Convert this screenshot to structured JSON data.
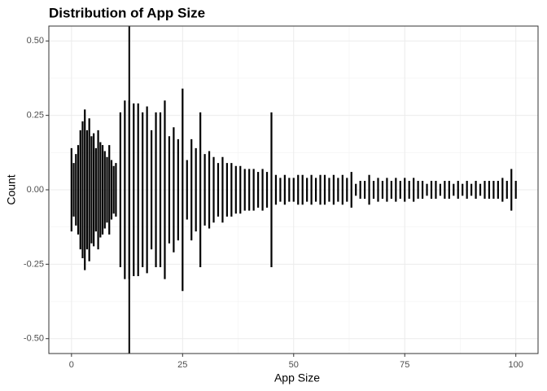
{
  "chart_data": {
    "type": "linerange",
    "title": "Distribution of App Size",
    "x_label": "App Size",
    "y_label": "Count",
    "x": [
      0,
      0.5,
      1,
      1.5,
      2,
      2.5,
      3,
      3.5,
      4,
      4.5,
      5,
      5.5,
      6,
      6.5,
      7,
      7.5,
      8,
      8.5,
      9,
      9.5,
      10,
      11,
      12,
      13,
      14,
      15,
      16,
      17,
      18,
      19,
      20,
      21,
      22,
      23,
      24,
      25,
      26,
      27,
      28,
      29,
      30,
      31,
      32,
      33,
      34,
      35,
      36,
      37,
      38,
      39,
      40,
      41,
      42,
      43,
      44,
      45,
      46,
      47,
      48,
      49,
      50,
      51,
      52,
      53,
      54,
      55,
      56,
      57,
      58,
      59,
      60,
      61,
      62,
      63,
      64,
      65,
      66,
      67,
      68,
      69,
      70,
      71,
      72,
      73,
      74,
      75,
      76,
      77,
      78,
      79,
      80,
      81,
      82,
      83,
      84,
      85,
      86,
      87,
      88,
      89,
      90,
      91,
      92,
      93,
      94,
      95,
      96,
      97,
      98,
      99,
      100
    ],
    "values": [
      0.14,
      0.09,
      0.12,
      0.15,
      0.2,
      0.23,
      0.27,
      0.2,
      0.24,
      0.18,
      0.19,
      0.14,
      0.2,
      0.16,
      0.15,
      0.13,
      0.11,
      0.15,
      0.1,
      0.08,
      0.09,
      0.26,
      0.3,
      0.3,
      0.29,
      0.29,
      0.26,
      0.28,
      0.2,
      0.26,
      0.26,
      0.3,
      0.18,
      0.21,
      0.17,
      0.34,
      0.1,
      0.17,
      0.14,
      0.26,
      0.12,
      0.13,
      0.11,
      0.09,
      0.11,
      0.09,
      0.09,
      0.08,
      0.08,
      0.07,
      0.07,
      0.07,
      0.06,
      0.07,
      0.06,
      0.26,
      0.05,
      0.04,
      0.05,
      0.04,
      0.04,
      0.05,
      0.05,
      0.04,
      0.05,
      0.04,
      0.05,
      0.05,
      0.04,
      0.05,
      0.04,
      0.05,
      0.04,
      0.06,
      0.02,
      0.03,
      0.03,
      0.05,
      0.03,
      0.04,
      0.03,
      0.04,
      0.03,
      0.04,
      0.03,
      0.04,
      0.03,
      0.04,
      0.03,
      0.03,
      0.02,
      0.03,
      0.03,
      0.02,
      0.03,
      0.03,
      0.02,
      0.03,
      0.02,
      0.03,
      0.02,
      0.03,
      0.02,
      0.03,
      0.03,
      0.03,
      0.03,
      0.04,
      0.03,
      0.07,
      0.03
    ],
    "color": "#000000",
    "vline": 13,
    "xlim": [
      -5.1,
      105
    ],
    "ylim": [
      -0.55,
      0.55
    ],
    "xticks": [
      0,
      25,
      50,
      75,
      100
    ],
    "yticks": [
      {
        "value": -0.5,
        "label": "-0.50"
      },
      {
        "value": -0.25,
        "label": "-0.25"
      },
      {
        "value": 0,
        "label": "0.00"
      },
      {
        "value": 0.25,
        "label": "0.25"
      },
      {
        "value": 0.5,
        "label": "0.50"
      }
    ],
    "xminor": [
      12.5,
      37.5,
      62.5,
      87.5
    ],
    "yminor": [
      -0.375,
      -0.125,
      0.125,
      0.375
    ],
    "grid": true
  }
}
